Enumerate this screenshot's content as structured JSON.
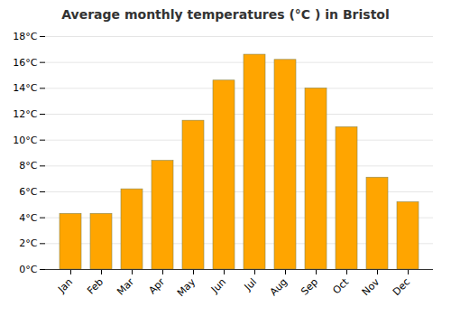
{
  "chart_data": {
    "type": "bar",
    "title": "Average monthly temperatures (°C ) in Bristol",
    "categories": [
      "Jan",
      "Feb",
      "Mar",
      "Apr",
      "May",
      "Jun",
      "Jul",
      "Aug",
      "Sep",
      "Oct",
      "Nov",
      "Dec"
    ],
    "values": [
      4.3,
      4.3,
      6.2,
      8.4,
      11.5,
      14.6,
      16.6,
      16.2,
      14.0,
      11.0,
      7.1,
      5.2
    ],
    "color": "#FFA500",
    "ylim": [
      0,
      18
    ],
    "yticks": [
      {
        "value": 0,
        "label": "0°C"
      },
      {
        "value": 2,
        "label": "2°C"
      },
      {
        "value": 4,
        "label": "4°C"
      },
      {
        "value": 6,
        "label": "6°C"
      },
      {
        "value": 8,
        "label": "8°C"
      },
      {
        "value": 10,
        "label": "10°C"
      },
      {
        "value": 12,
        "label": "12°C"
      },
      {
        "value": 14,
        "label": "14°C"
      },
      {
        "value": 16,
        "label": "16°C"
      },
      {
        "value": 18,
        "label": "18°C"
      }
    ],
    "grid": true
  }
}
